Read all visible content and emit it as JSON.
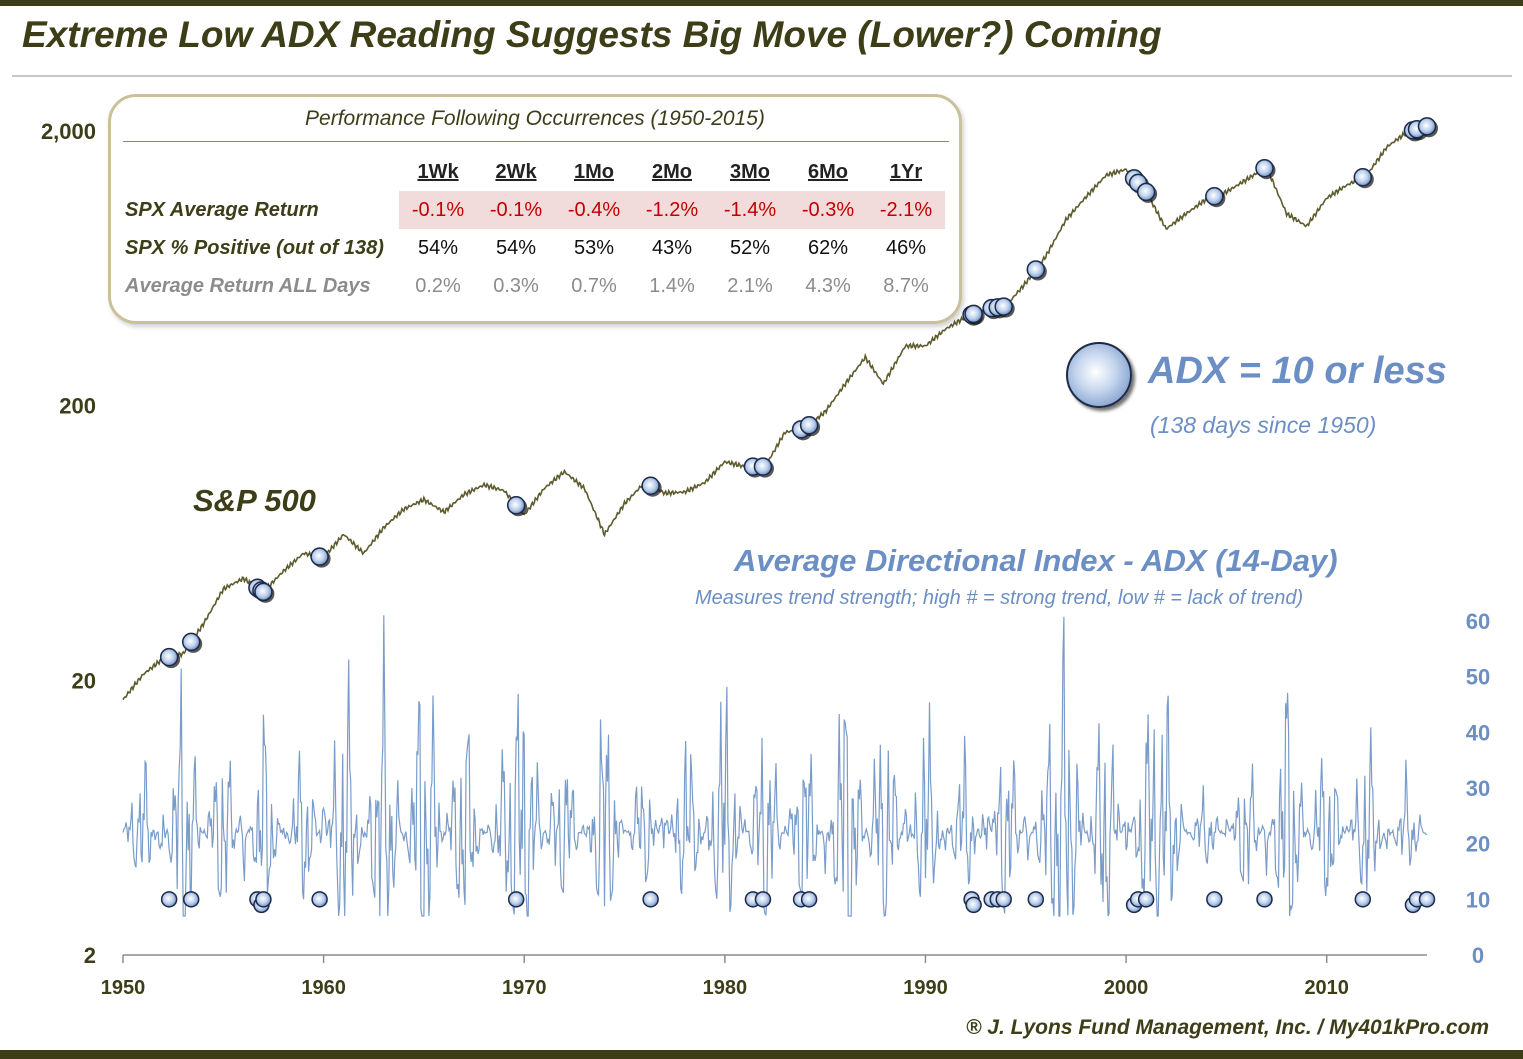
{
  "title": "Extreme Low ADX Reading Suggests Big Move (Lower?) Coming",
  "performance_table": {
    "title": "Performance Following Occurrences (1950-2015)",
    "columns": [
      "1Wk",
      "2Wk",
      "1Mo",
      "2Mo",
      "3Mo",
      "6Mo",
      "1Yr"
    ],
    "rows": [
      {
        "label": "SPX Average Return",
        "values": [
          "-0.1%",
          "-0.1%",
          "-0.4%",
          "-1.2%",
          "-1.4%",
          "-0.3%",
          "-2.1%"
        ],
        "highlight": "red"
      },
      {
        "label": "SPX % Positive (out of 138)",
        "values": [
          "54%",
          "54%",
          "53%",
          "43%",
          "52%",
          "62%",
          "46%"
        ]
      },
      {
        "label": "Average Return ALL Days",
        "values": [
          "0.2%",
          "0.3%",
          "0.7%",
          "1.4%",
          "2.1%",
          "4.3%",
          "8.7%"
        ],
        "highlight": "gray"
      }
    ]
  },
  "labels": {
    "sp500": "S&P 500",
    "adx_title": "Average Directional Index - ADX (14-Day)",
    "adx_subtitle": "Measures trend strength; high # = strong trend, low # = lack of trend)",
    "legend_label": "ADX = 10 or less",
    "legend_sub": "(138 days since 1950)",
    "footer": "® J. Lyons Fund Management, Inc. / My401kPro.com"
  },
  "colors": {
    "sp500_line": "#5e5b2e",
    "adx_line": "#7a9cc9",
    "marker_fill": "#bcd0ec",
    "marker_edge": "#1d2a48",
    "axis_text": "#3d3d18",
    "right_axis_text": "#6b8fc4"
  },
  "chart_data": {
    "type": "line",
    "x_axis": {
      "label": "",
      "range": [
        1950,
        2015
      ],
      "ticks": [
        "1950",
        "1960",
        "1970",
        "1980",
        "1990",
        "2000",
        "2010"
      ]
    },
    "left_axis": {
      "label": "",
      "scale": "log",
      "range": [
        2,
        2000
      ],
      "ticks": [
        "2",
        "20",
        "200",
        "2,000"
      ]
    },
    "right_axis": {
      "label": "",
      "range": [
        0,
        60
      ],
      "ticks": [
        "0",
        "10",
        "20",
        "30",
        "40",
        "50",
        "60"
      ]
    },
    "series": [
      {
        "name": "S&P 500",
        "axis": "left",
        "x": [
          1950,
          1951,
          1952,
          1953,
          1954,
          1955,
          1956,
          1957,
          1958,
          1959,
          1960,
          1961,
          1962,
          1963,
          1964,
          1965,
          1966,
          1967,
          1968,
          1969,
          1970,
          1971,
          1972,
          1973,
          1974,
          1975,
          1976,
          1977,
          1978,
          1979,
          1980,
          1981,
          1982,
          1983,
          1984,
          1985,
          1986,
          1987,
          1987.9,
          1989,
          1990,
          1991,
          1992,
          1993,
          1994,
          1995,
          1996,
          1997,
          1998,
          1999,
          2000,
          2001,
          2002,
          2003,
          2004,
          2005,
          2006,
          2007,
          2008,
          2009,
          2010,
          2011,
          2012,
          2013,
          2014,
          2015
        ],
        "values": [
          17,
          21,
          24,
          25,
          32,
          43,
          47,
          42,
          50,
          58,
          56,
          68,
          58,
          72,
          84,
          91,
          82,
          95,
          103,
          98,
          80,
          100,
          115,
          100,
          68,
          88,
          105,
          96,
          97,
          105,
          125,
          120,
          120,
          160,
          165,
          190,
          240,
          300,
          240,
          330,
          330,
          380,
          420,
          450,
          460,
          560,
          700,
          950,
          1150,
          1380,
          1450,
          1200,
          880,
          1000,
          1130,
          1200,
          1330,
          1480,
          1000,
          900,
          1140,
          1270,
          1380,
          1750,
          1980,
          2080
        ]
      },
      {
        "name": "ADX",
        "axis": "right",
        "x": [
          1950,
          1951,
          1952,
          1953,
          1954,
          1955,
          1956,
          1957,
          1958,
          1959,
          1960,
          1961,
          1962,
          1963,
          1964,
          1965,
          1966,
          1967,
          1968,
          1969,
          1970,
          1971,
          1972,
          1973,
          1974,
          1975,
          1976,
          1977,
          1978,
          1979,
          1980,
          1981,
          1982,
          1983,
          1984,
          1985,
          1986,
          1987,
          1988,
          1989,
          1990,
          1991,
          1992,
          1993,
          1994,
          1995,
          1996,
          1997,
          1998,
          1999,
          2000,
          2001,
          2002,
          2003,
          2004,
          2005,
          2006,
          2007,
          2008,
          2009,
          2010,
          2011,
          2012,
          2013,
          2014,
          2015
        ],
        "values": [
          22,
          38,
          15,
          55,
          20,
          45,
          12,
          46,
          18,
          42,
          14,
          58,
          20,
          59,
          18,
          62,
          22,
          48,
          20,
          38,
          55,
          22,
          41,
          18,
          52,
          20,
          38,
          14,
          45,
          22,
          55,
          18,
          48,
          20,
          45,
          16,
          59,
          22,
          50,
          15,
          50,
          18,
          42,
          12,
          48,
          15,
          38,
          61,
          20,
          52,
          14,
          45,
          50,
          20,
          32,
          18,
          40,
          15,
          55,
          22,
          42,
          20,
          44,
          18,
          34,
          20
        ]
      },
      {
        "name": "ADX = 10 or less",
        "type": "scatter",
        "x": [
          1952.3,
          1953.4,
          1956.7,
          1956.9,
          1957.0,
          1959.8,
          1969.6,
          1976.3,
          1981.4,
          1981.9,
          1983.8,
          1984.2,
          1992.3,
          1992.4,
          1993.3,
          1993.6,
          1993.9,
          1995.5,
          2000.4,
          2000.6,
          2001.0,
          2004.4,
          2006.9,
          2011.8,
          2014.3,
          2014.5,
          2015.0
        ],
        "values": [
          10,
          10,
          10,
          9,
          10,
          10,
          10,
          10,
          10,
          10,
          10,
          10,
          10,
          9,
          10,
          10,
          10,
          10,
          9,
          10,
          10,
          10,
          10,
          10,
          9,
          10,
          10
        ]
      }
    ]
  }
}
